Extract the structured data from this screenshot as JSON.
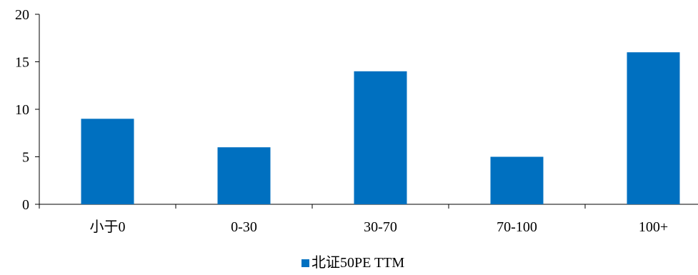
{
  "chart_data": {
    "type": "bar",
    "categories": [
      "小于0",
      "0-30",
      "30-70",
      "70-100",
      "100+"
    ],
    "series": [
      {
        "name": "北证50PE TTM",
        "values": [
          9,
          6,
          14,
          5,
          16
        ],
        "color": "#0070C0"
      }
    ],
    "ylim": [
      0,
      20
    ],
    "yticks": [
      0,
      5,
      10,
      15,
      20
    ],
    "xlabel": "",
    "ylabel": "",
    "grid": false,
    "legend_position": "bottom"
  }
}
